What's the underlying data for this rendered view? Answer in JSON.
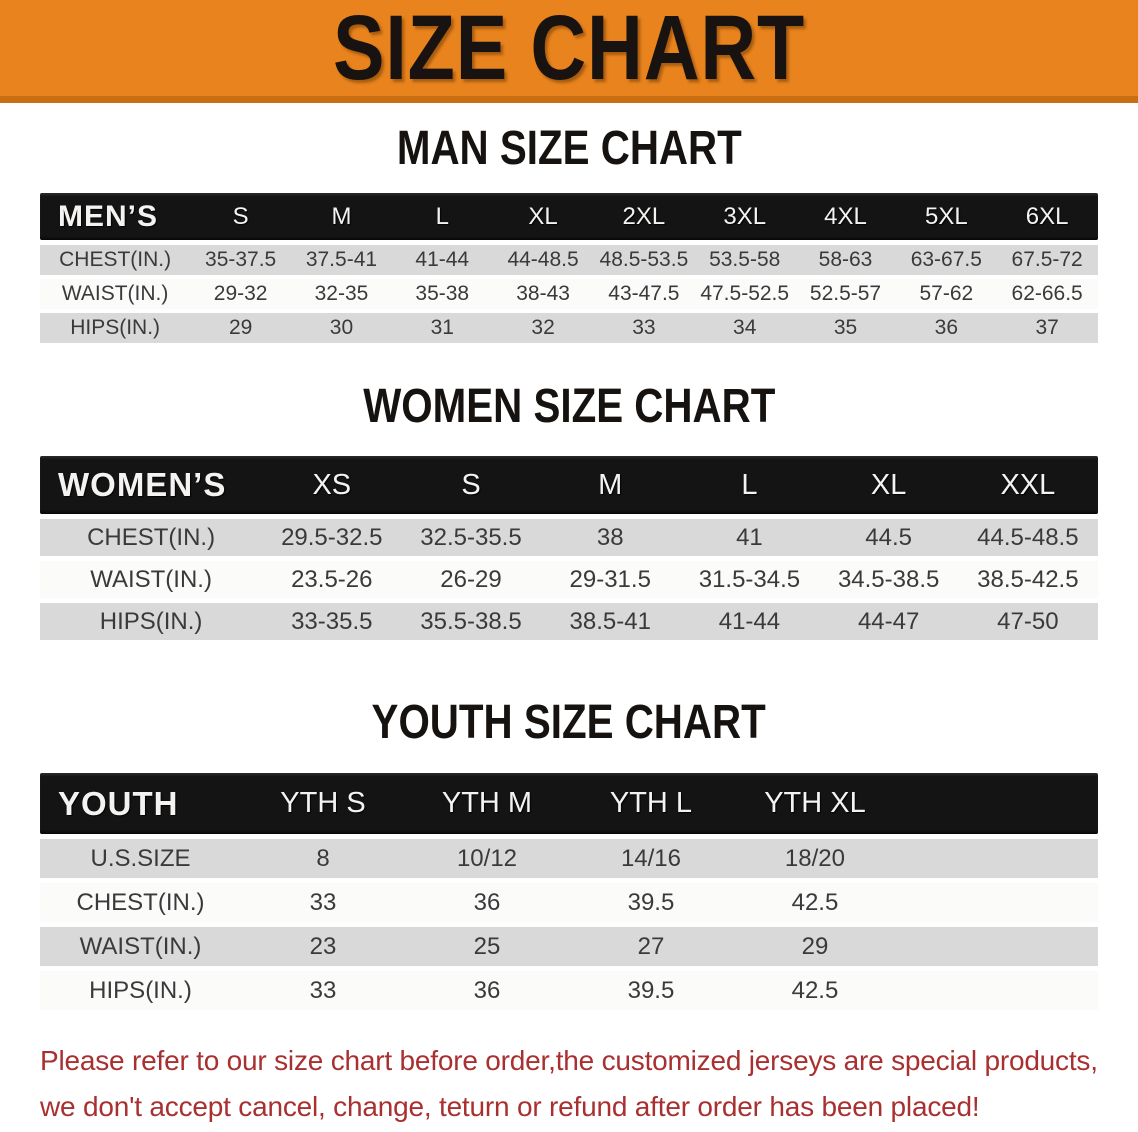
{
  "banner": {
    "title": "SIZE CHART",
    "bg_color": "#E8831D",
    "border_color": "#C96E12"
  },
  "sections": [
    {
      "id": "men",
      "title": "MAN SIZE CHART",
      "corner_label": "MEN’S",
      "columns": [
        "S",
        "M",
        "L",
        "XL",
        "2XL",
        "3XL",
        "4XL",
        "5XL",
        "6XL"
      ],
      "rows": [
        {
          "label": "CHEST(IN.)",
          "values": [
            "35-37.5",
            "37.5-41",
            "41-44",
            "44-48.5",
            "48.5-53.5",
            "53.5-58",
            "58-63",
            "63-67.5",
            "67.5-72"
          ]
        },
        {
          "label": "WAIST(IN.)",
          "values": [
            "29-32",
            "32-35",
            "35-38",
            "38-43",
            "43-47.5",
            "47.5-52.5",
            "52.5-57",
            "57-62",
            "62-66.5"
          ]
        },
        {
          "label": "HIPS(IN.)",
          "values": [
            "29",
            "30",
            "31",
            "32",
            "33",
            "34",
            "35",
            "36",
            "37"
          ]
        }
      ]
    },
    {
      "id": "women",
      "title": "WOMEN SIZE CHART",
      "corner_label": "WOMEN’S",
      "columns": [
        "XS",
        "S",
        "M",
        "L",
        "XL",
        "XXL"
      ],
      "rows": [
        {
          "label": "CHEST(IN.)",
          "values": [
            "29.5-32.5",
            "32.5-35.5",
            "38",
            "41",
            "44.5",
            "44.5-48.5"
          ]
        },
        {
          "label": "WAIST(IN.)",
          "values": [
            "23.5-26",
            "26-29",
            "29-31.5",
            "31.5-34.5",
            "34.5-38.5",
            "38.5-42.5"
          ]
        },
        {
          "label": "HIPS(IN.)",
          "values": [
            "33-35.5",
            "35.5-38.5",
            "38.5-41",
            "41-44",
            "44-47",
            "47-50"
          ]
        }
      ]
    },
    {
      "id": "youth",
      "title": "YOUTH SIZE CHART",
      "corner_label": "YOUTH",
      "columns": [
        "YTH S",
        "YTH M",
        "YTH L",
        "YTH XL"
      ],
      "rows": [
        {
          "label": "U.S.SIZE",
          "values": [
            "8",
            "10/12",
            "14/16",
            "18/20"
          ]
        },
        {
          "label": "CHEST(IN.)",
          "values": [
            "33",
            "36",
            "39.5",
            "42.5"
          ]
        },
        {
          "label": "WAIST(IN.)",
          "values": [
            "23",
            "25",
            "27",
            "29"
          ]
        },
        {
          "label": "HIPS(IN.)",
          "values": [
            "33",
            "36",
            "39.5",
            "42.5"
          ]
        }
      ]
    }
  ],
  "footer": {
    "lines": [
      "Please refer to our size chart before order,the customized jerseys are special products,",
      "we don't accept cancel, change, teturn or refund after order has been placed!"
    ],
    "color": "#A93030"
  },
  "colors": {
    "header_row_bg": "#141414",
    "stripe_gray": "#D9D9D9",
    "stripe_white": "#FBFBFA",
    "cell_text": "#3A3A3C"
  }
}
